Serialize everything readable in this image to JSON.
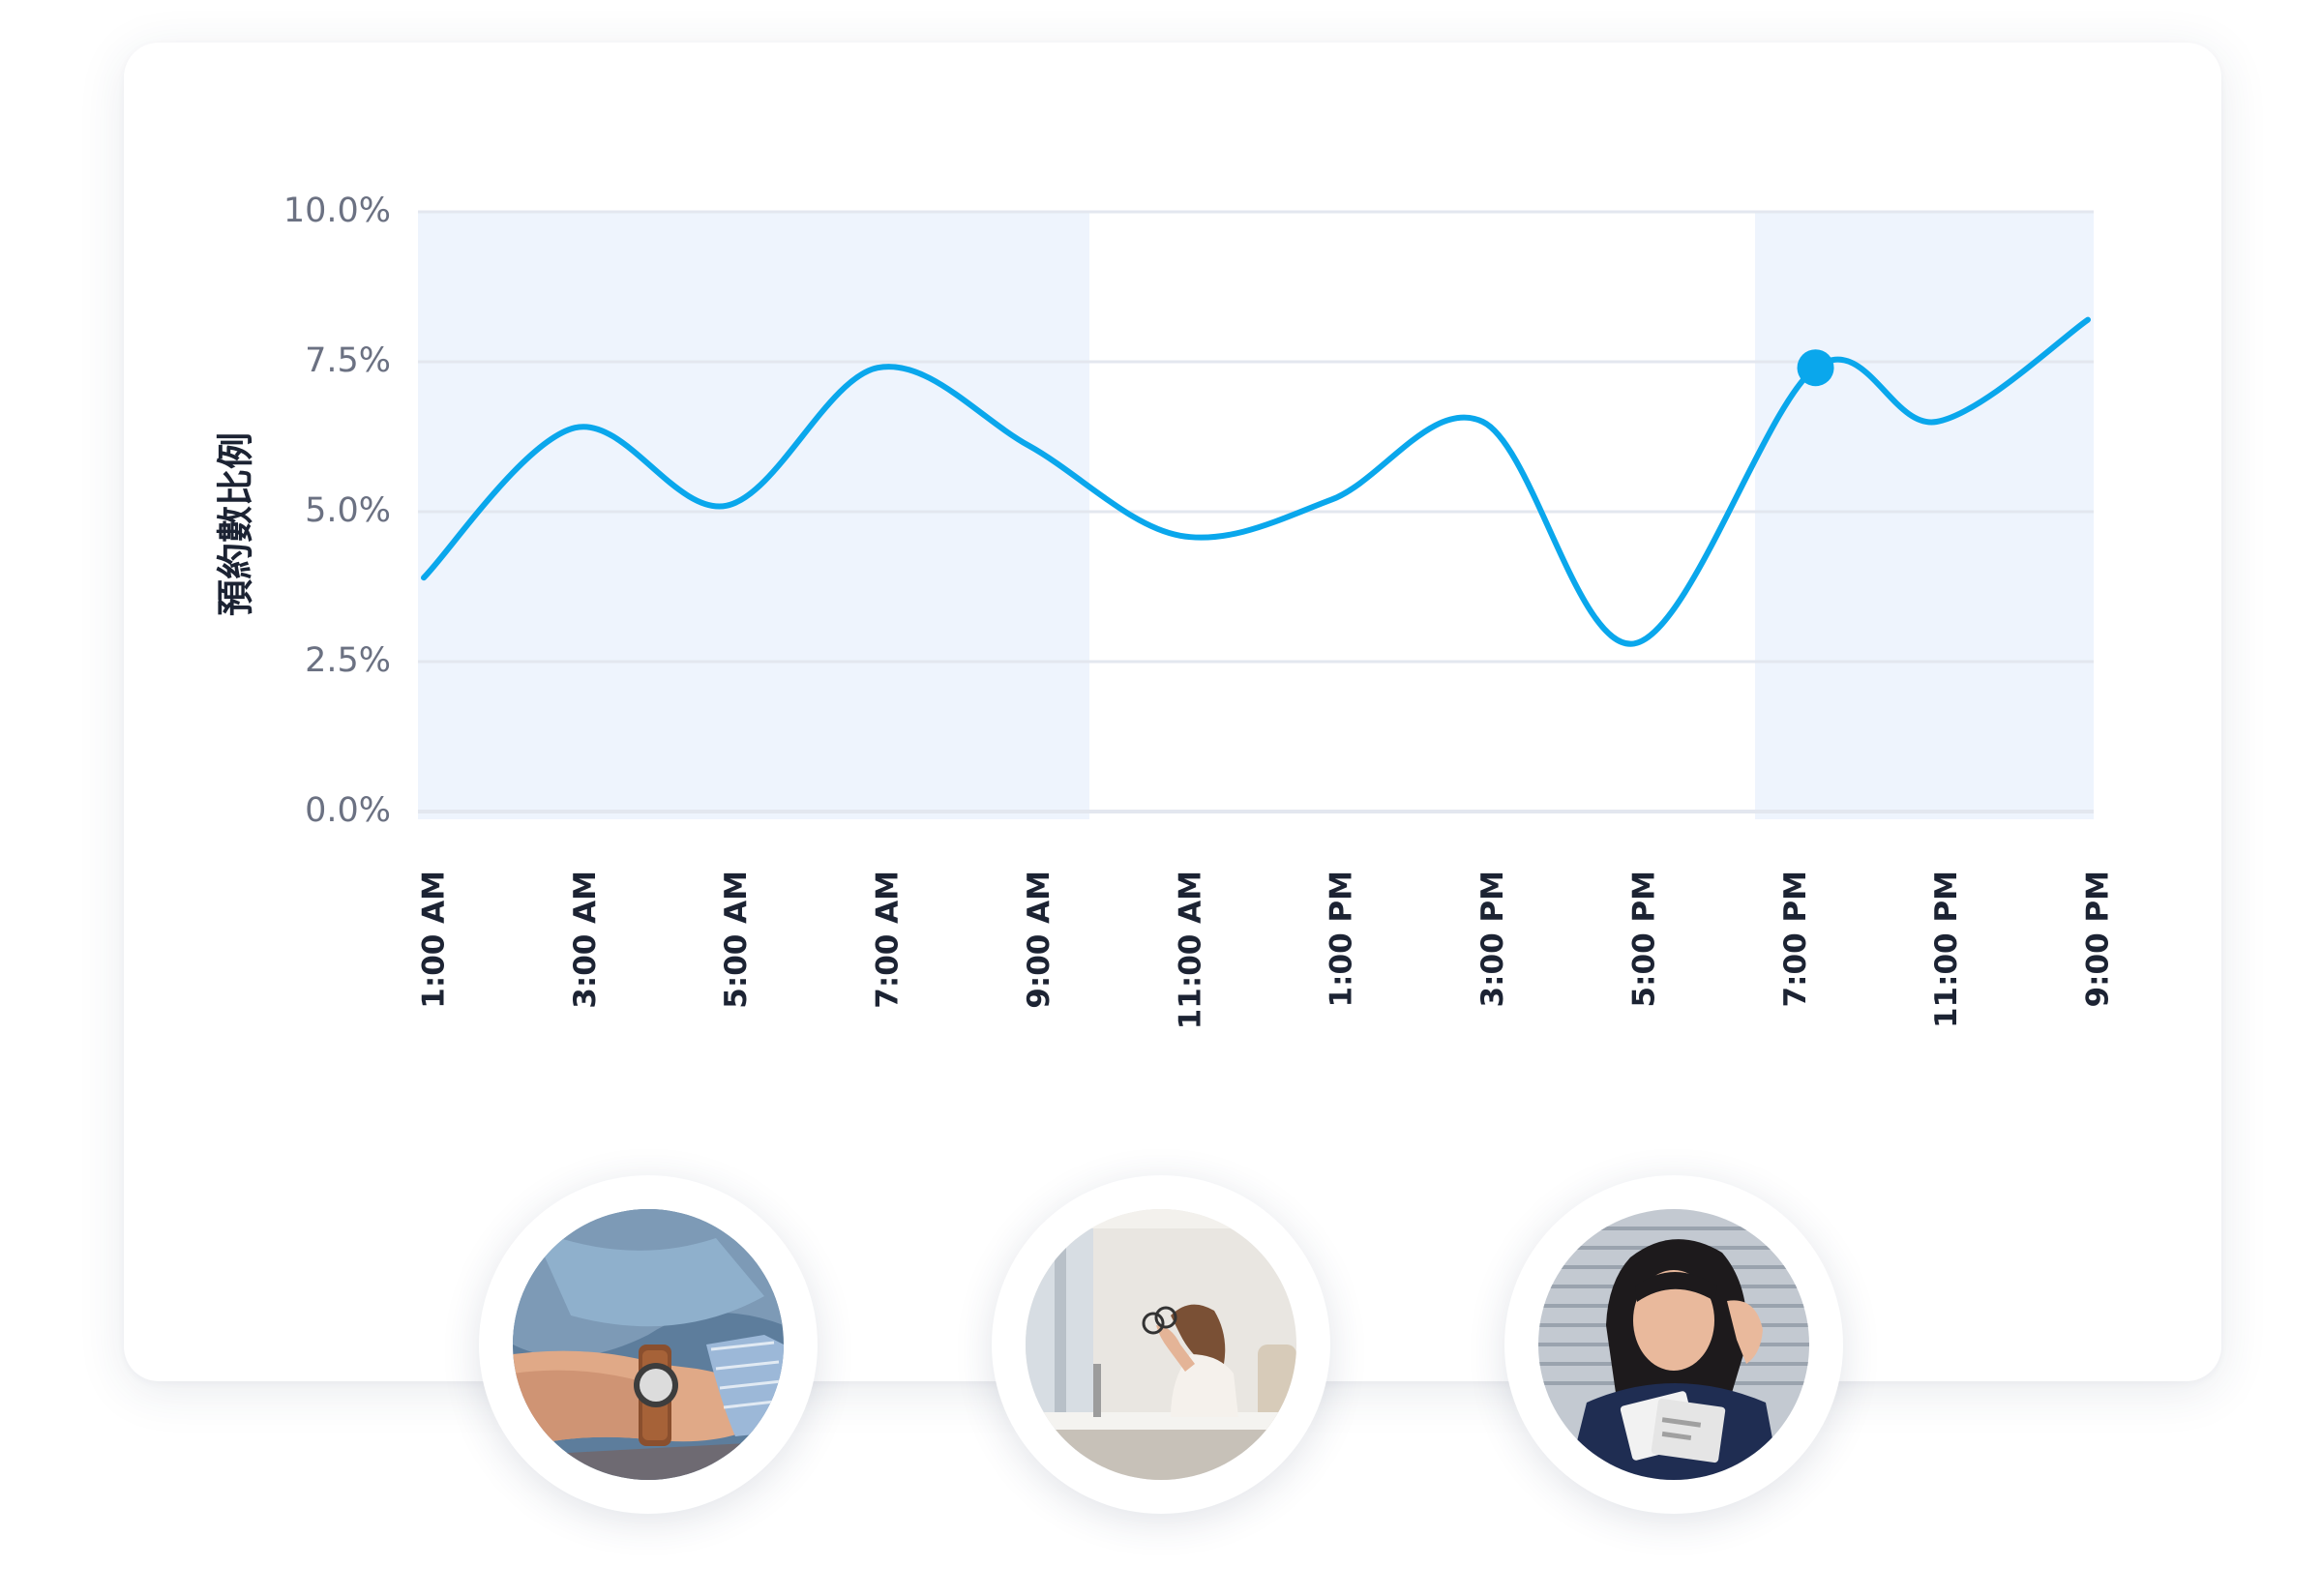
{
  "colors": {
    "line": "#0aa7ec",
    "band": "#eef4fd",
    "grid": "#e3e7ef",
    "axis_text": "#6b7182",
    "tick_text": "#1c2333"
  },
  "chart_data": {
    "type": "line",
    "ylabel": "預約數比例",
    "xlabel": "",
    "title": "",
    "ylim": [
      0,
      10
    ],
    "y_ticks": [
      "0.0%",
      "2.5%",
      "5.0%",
      "7.5%",
      "10.0%"
    ],
    "y_tick_values": [
      0,
      2.5,
      5,
      7.5,
      10
    ],
    "categories": [
      "1:00 AM",
      "3:00 AM",
      "5:00 AM",
      "7:00 AM",
      "9:00 AM",
      "11:00 AM",
      "1:00 PM",
      "3:00 PM",
      "5:00 PM",
      "7:00 PM",
      "11:00 PM",
      "9:00 PM"
    ],
    "series": [
      {
        "x": [
          0,
          1,
          2,
          3,
          4,
          5,
          6,
          7,
          8,
          9.2,
          10,
          11
        ],
        "values": [
          3.9,
          6.4,
          5.1,
          7.4,
          6.1,
          4.6,
          5.2,
          6.5,
          2.8,
          7.4,
          6.5,
          8.2
        ]
      }
    ],
    "highlighted_point": {
      "x": 9.2,
      "value": 7.4
    },
    "shaded_ranges": [
      [
        0,
        4.4
      ],
      [
        8.8,
        11
      ]
    ],
    "grid": true
  },
  "photos": [
    {
      "icon": "wristwatch-photo"
    },
    {
      "icon": "stressed-office-worker-photo"
    },
    {
      "icon": "worried-woman-with-bills-photo"
    }
  ]
}
